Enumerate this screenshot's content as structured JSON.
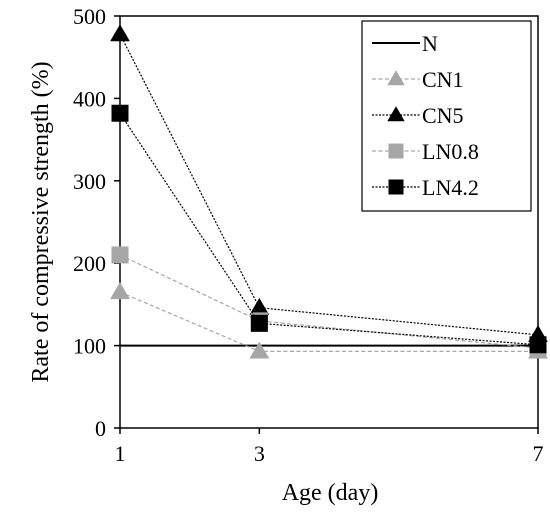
{
  "chart_data": {
    "type": "line",
    "title": "",
    "xlabel": "Age (day)",
    "ylabel": "Rate of compressive strength (%)",
    "x": [
      1,
      3,
      7
    ],
    "x_ticks": [
      "1",
      "3",
      "7"
    ],
    "xlim": [
      1,
      7
    ],
    "ylim": [
      0,
      500
    ],
    "y_ticks": [
      "0",
      "100",
      "200",
      "300",
      "400",
      "500"
    ],
    "grid": false,
    "legend_position": "top-right",
    "series": [
      {
        "name": "N",
        "values": [
          100,
          100,
          100
        ],
        "color": "#000000",
        "marker": "none",
        "line": "solid"
      },
      {
        "name": "CN1",
        "values": [
          165,
          93,
          93
        ],
        "color": "#a6a6a6",
        "marker": "triangle",
        "line": "dashed"
      },
      {
        "name": "CN5",
        "values": [
          478,
          146,
          113
        ],
        "color": "#000000",
        "marker": "triangle",
        "line": "dotted"
      },
      {
        "name": "LN0.8",
        "values": [
          210,
          130,
          97
        ],
        "color": "#a6a6a6",
        "marker": "square",
        "line": "dashed"
      },
      {
        "name": "LN4.2",
        "values": [
          382,
          127,
          101
        ],
        "color": "#000000",
        "marker": "square",
        "line": "dotted"
      }
    ]
  }
}
